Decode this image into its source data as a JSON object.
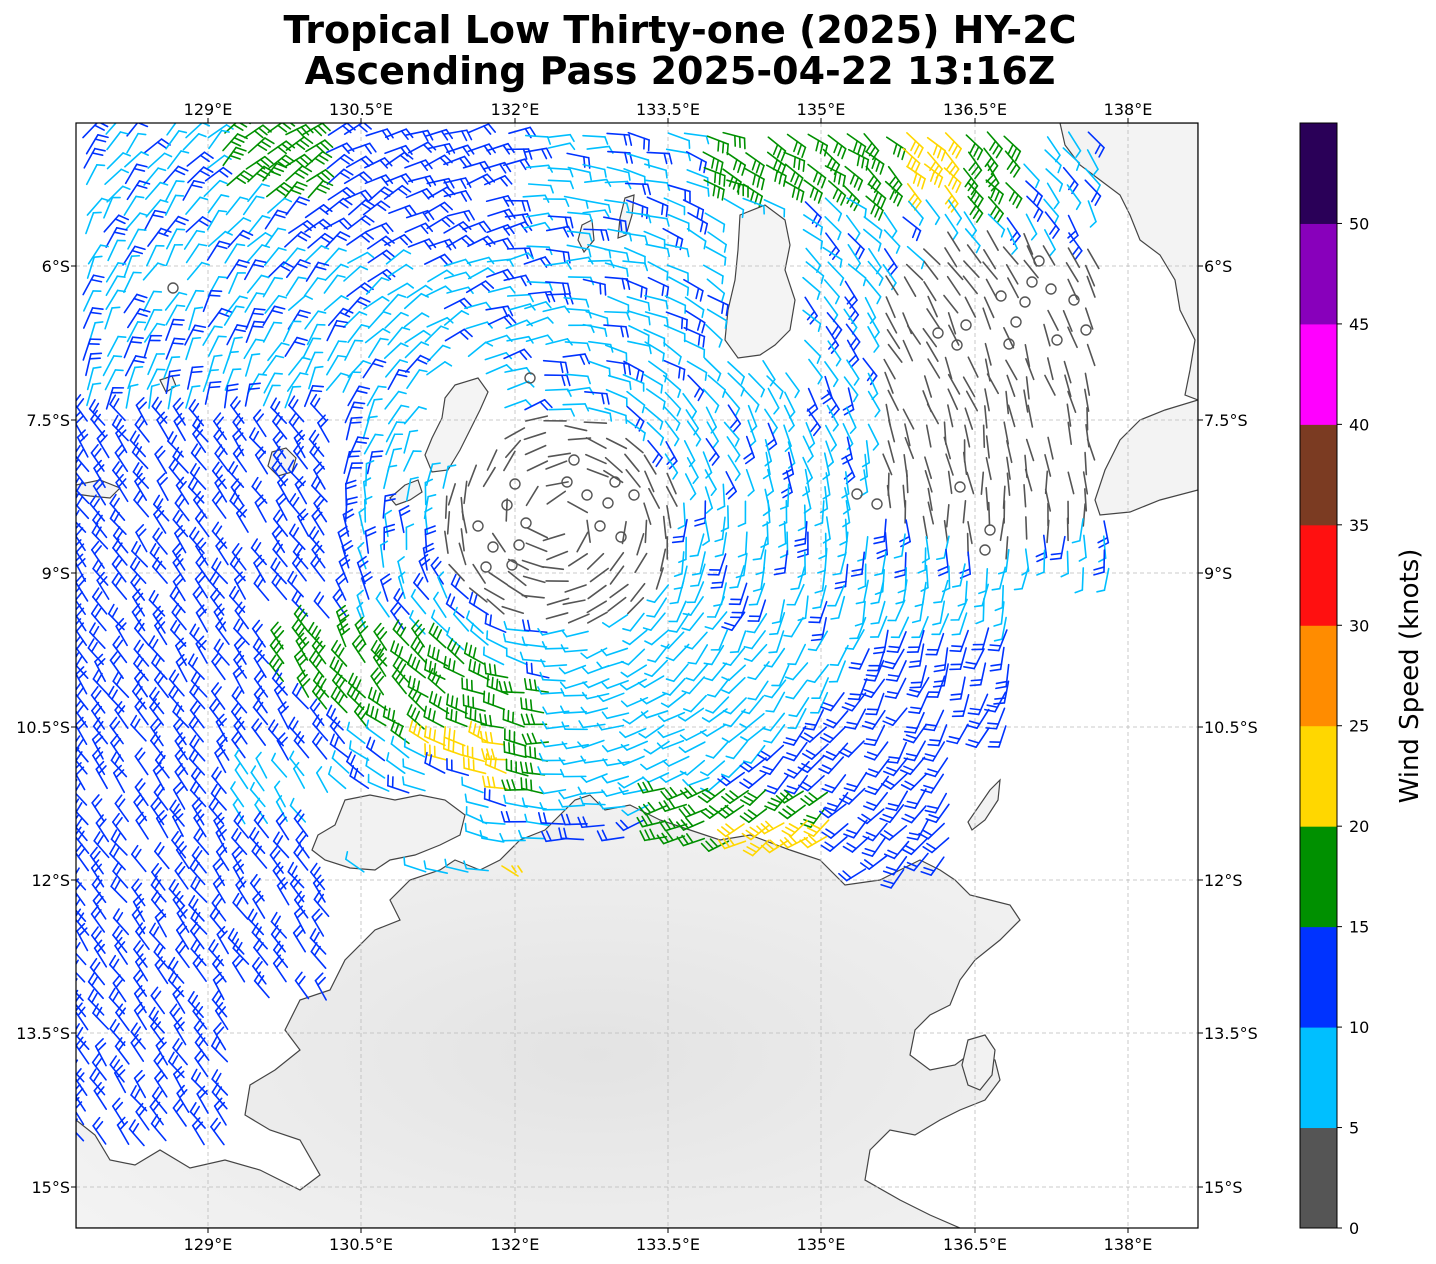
{
  "title_line1": "Tropical Low Thirty-one (2025) HY-2C",
  "title_line2": "Ascending Pass 2025-04-22 13:16Z",
  "lon_ticks": [
    "129°E",
    "130.5°E",
    "132°E",
    "133.5°E",
    "135°E",
    "136.5°E",
    "138°E"
  ],
  "lat_ticks": [
    "6°S",
    "7.5°S",
    "9°S",
    "10.5°S",
    "12°S",
    "13.5°S",
    "15°S"
  ],
  "colorbar": {
    "label": "Wind Speed (knots)",
    "ticks": [
      "0",
      "5",
      "10",
      "15",
      "20",
      "25",
      "30",
      "35",
      "40",
      "45",
      "50"
    ],
    "colors": [
      "#555555",
      "#00bfff",
      "#0033ff",
      "#009000",
      "#ffd700",
      "#ff8c00",
      "#ff1010",
      "#7b3b22",
      "#ff00ff",
      "#8800bb",
      "#2a0058"
    ]
  },
  "map": {
    "lon_range": [
      127.7,
      138.7
    ],
    "lat_range": [
      -15.4,
      -4.6
    ],
    "gridlines": true,
    "land_color": "#eeeeee",
    "coast_color": "#444444"
  }
}
